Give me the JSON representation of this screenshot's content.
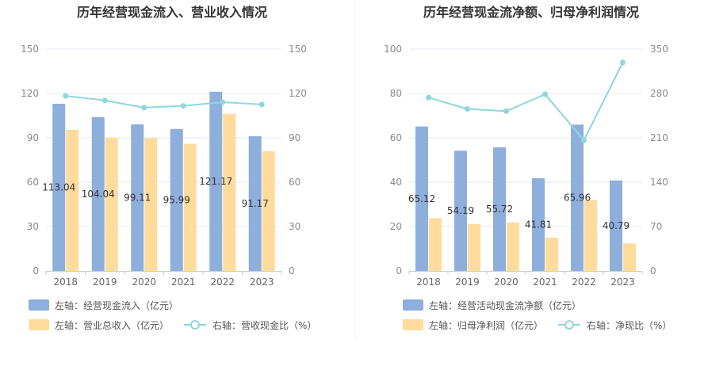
{
  "colors": {
    "bar_primary": "#8eaedc",
    "bar_secondary": "#ffdb9e",
    "line": "#8fd6de",
    "grid": "#e3e7f0",
    "divider": "#f0f0f0",
    "label": "#333333"
  },
  "chart_data": [
    {
      "type": "bar",
      "title": "历年经营现金流入、营业收入情况",
      "categories": [
        "2018",
        "2019",
        "2020",
        "2021",
        "2022",
        "2023"
      ],
      "left_axis": {
        "ticks": [
          "0",
          "30",
          "60",
          "90",
          "120",
          "150"
        ],
        "range": [
          0,
          150
        ]
      },
      "right_axis": {
        "ticks": [
          "0",
          "30",
          "60",
          "90",
          "120",
          "150"
        ],
        "range": [
          0,
          150
        ]
      },
      "grid": true,
      "legend_position": "bottom",
      "series": [
        {
          "name": "左轴：经营现金流入（亿元）",
          "type": "bar",
          "axis": "left",
          "values": [
            113.04,
            104.04,
            99.11,
            95.99,
            121.17,
            91.17
          ],
          "labels": [
            "113.04",
            "104.04",
            "99.11",
            "95.99",
            "121.17",
            "91.17"
          ]
        },
        {
          "name": "左轴：营业总收入（亿元）",
          "type": "bar",
          "axis": "left",
          "values": [
            95.5,
            90.2,
            89.8,
            86.0,
            106.2,
            81.0
          ]
        },
        {
          "name": "右轴：营收现金比（%）",
          "type": "line",
          "axis": "right",
          "values": [
            118.4,
            115.3,
            110.4,
            111.6,
            114.1,
            112.6
          ]
        }
      ]
    },
    {
      "type": "bar",
      "title": "历年经营现金流净额、归母净利润情况",
      "categories": [
        "2018",
        "2019",
        "2020",
        "2021",
        "2022",
        "2023"
      ],
      "left_axis": {
        "ticks": [
          "0",
          "20",
          "40",
          "60",
          "80",
          "100"
        ],
        "range": [
          0,
          100
        ]
      },
      "right_axis": {
        "ticks": [
          "0",
          "70",
          "140",
          "210",
          "280",
          "350"
        ],
        "range": [
          0,
          350
        ]
      },
      "grid": true,
      "legend_position": "bottom",
      "series": [
        {
          "name": "左轴：经营活动现金流净额（亿元）",
          "type": "bar",
          "axis": "left",
          "values": [
            65.12,
            54.19,
            55.72,
            41.81,
            65.96,
            40.79
          ],
          "labels": [
            "65.12",
            "54.19",
            "55.72",
            "41.81",
            "65.96",
            "40.79"
          ]
        },
        {
          "name": "左轴：归母净利润（亿元）",
          "type": "bar",
          "axis": "left",
          "values": [
            23.8,
            21.2,
            21.8,
            15.0,
            32.0,
            12.4
          ]
        },
        {
          "name": "右轴：净现比（%）",
          "type": "line",
          "axis": "right",
          "values": [
            273.6,
            255.6,
            252.1,
            278.7,
            206.2,
            328.9
          ]
        }
      ]
    }
  ]
}
